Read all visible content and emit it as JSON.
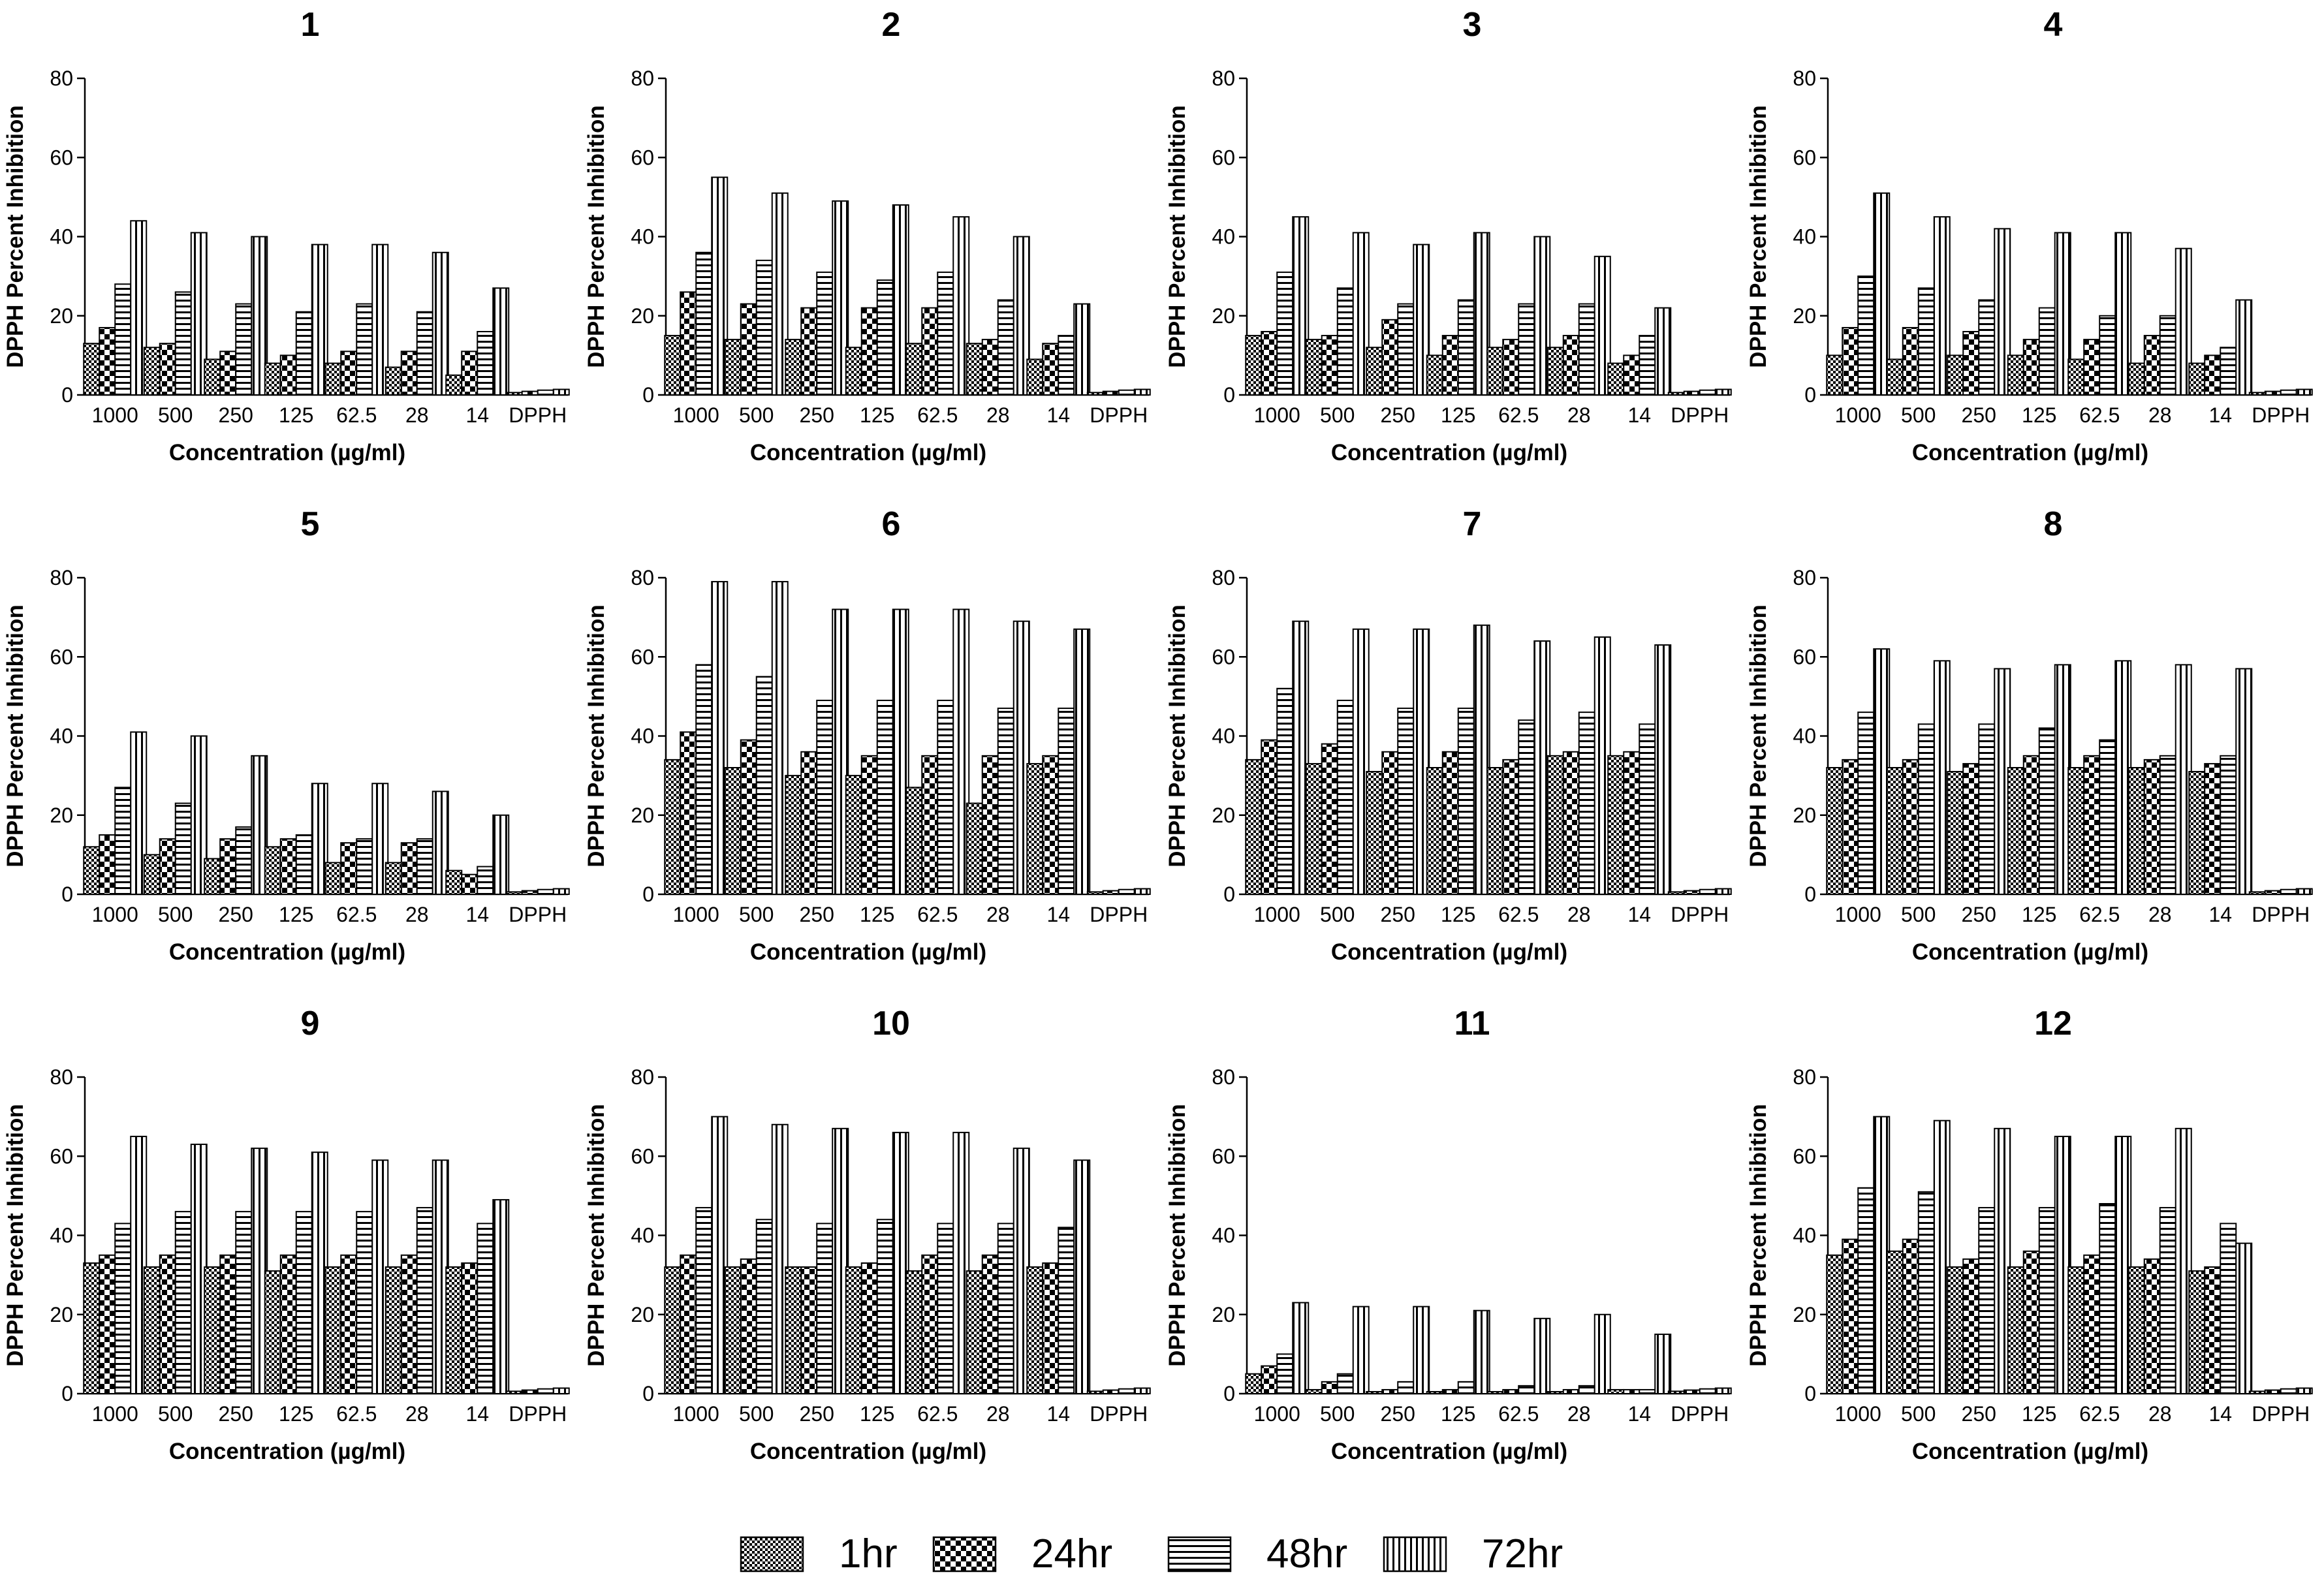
{
  "chart_data": [
    {
      "type": "bar",
      "title": "1",
      "xlabel": "Concentration (µg/ml)",
      "ylabel": "DPPH Percent Inhibition",
      "ylim": [
        0,
        80
      ],
      "yticks": [
        0,
        20,
        40,
        60,
        80
      ],
      "categories": [
        "1000",
        "500",
        "250",
        "125",
        "62.5",
        "28",
        "14",
        "DPPH"
      ],
      "series": [
        {
          "name": "1hr",
          "values": [
            13,
            12,
            9,
            8,
            8,
            7,
            5,
            0.6
          ]
        },
        {
          "name": "24hr",
          "values": [
            17,
            13,
            11,
            10,
            11,
            11,
            11,
            0.9
          ]
        },
        {
          "name": "48hr",
          "values": [
            28,
            26,
            23,
            21,
            23,
            21,
            16,
            1.2
          ]
        },
        {
          "name": "72hr",
          "values": [
            44,
            41,
            40,
            38,
            38,
            36,
            27,
            1.4
          ]
        }
      ]
    },
    {
      "type": "bar",
      "title": "2",
      "xlabel": "Concentration (µg/ml)",
      "ylabel": "DPPH Percent Inhibition",
      "ylim": [
        0,
        80
      ],
      "yticks": [
        0,
        20,
        40,
        60,
        80
      ],
      "categories": [
        "1000",
        "500",
        "250",
        "125",
        "62.5",
        "28",
        "14",
        "DPPH"
      ],
      "series": [
        {
          "name": "1hr",
          "values": [
            15,
            14,
            14,
            12,
            13,
            13,
            9,
            0.6
          ]
        },
        {
          "name": "24hr",
          "values": [
            26,
            23,
            22,
            22,
            22,
            14,
            13,
            0.9
          ]
        },
        {
          "name": "48hr",
          "values": [
            36,
            34,
            31,
            29,
            31,
            24,
            15,
            1.2
          ]
        },
        {
          "name": "72hr",
          "values": [
            55,
            51,
            49,
            48,
            45,
            40,
            23,
            1.4
          ]
        }
      ]
    },
    {
      "type": "bar",
      "title": "3",
      "xlabel": "Concentration (µg/ml)",
      "ylabel": "DPPH Percent Inhibition",
      "ylim": [
        0,
        80
      ],
      "yticks": [
        0,
        20,
        40,
        60,
        80
      ],
      "categories": [
        "1000",
        "500",
        "250",
        "125",
        "62.5",
        "28",
        "14",
        "DPPH"
      ],
      "series": [
        {
          "name": "1hr",
          "values": [
            15,
            14,
            12,
            10,
            12,
            12,
            8,
            0.6
          ]
        },
        {
          "name": "24hr",
          "values": [
            16,
            15,
            19,
            15,
            14,
            15,
            10,
            0.9
          ]
        },
        {
          "name": "48hr",
          "values": [
            31,
            27,
            23,
            24,
            23,
            23,
            15,
            1.2
          ]
        },
        {
          "name": "72hr",
          "values": [
            45,
            41,
            38,
            41,
            40,
            35,
            22,
            1.4
          ]
        }
      ]
    },
    {
      "type": "bar",
      "title": "4",
      "xlabel": "Concentration (µg/ml)",
      "ylabel": "DPPH Percent Inhibition",
      "ylim": [
        0,
        80
      ],
      "yticks": [
        0,
        20,
        40,
        60,
        80
      ],
      "categories": [
        "1000",
        "500",
        "250",
        "125",
        "62.5",
        "28",
        "14",
        "DPPH"
      ],
      "series": [
        {
          "name": "1hr",
          "values": [
            10,
            9,
            10,
            10,
            9,
            8,
            8,
            0.6
          ]
        },
        {
          "name": "24hr",
          "values": [
            17,
            17,
            16,
            14,
            14,
            15,
            10,
            0.9
          ]
        },
        {
          "name": "48hr",
          "values": [
            30,
            27,
            24,
            22,
            20,
            20,
            12,
            1.2
          ]
        },
        {
          "name": "72hr",
          "values": [
            51,
            45,
            42,
            41,
            41,
            37,
            24,
            1.4
          ]
        }
      ]
    },
    {
      "type": "bar",
      "title": "5",
      "xlabel": "Concentration (µg/ml)",
      "ylabel": "DPPH Percent Inhibition",
      "ylim": [
        0,
        80
      ],
      "yticks": [
        0,
        20,
        40,
        60,
        80
      ],
      "categories": [
        "1000",
        "500",
        "250",
        "125",
        "62.5",
        "28",
        "14",
        "DPPH"
      ],
      "series": [
        {
          "name": "1hr",
          "values": [
            12,
            10,
            9,
            12,
            8,
            8,
            6,
            0.6
          ]
        },
        {
          "name": "24hr",
          "values": [
            15,
            14,
            14,
            14,
            13,
            13,
            5,
            0.9
          ]
        },
        {
          "name": "48hr",
          "values": [
            27,
            23,
            17,
            15,
            14,
            14,
            7,
            1.2
          ]
        },
        {
          "name": "72hr",
          "values": [
            41,
            40,
            35,
            28,
            28,
            26,
            20,
            1.4
          ]
        }
      ]
    },
    {
      "type": "bar",
      "title": "6",
      "xlabel": "Concentration (µg/ml)",
      "ylabel": "DPPH Percent Inhibition",
      "ylim": [
        0,
        80
      ],
      "yticks": [
        0,
        20,
        40,
        60,
        80
      ],
      "categories": [
        "1000",
        "500",
        "250",
        "125",
        "62.5",
        "28",
        "14",
        "DPPH"
      ],
      "series": [
        {
          "name": "1hr",
          "values": [
            34,
            32,
            30,
            30,
            27,
            23,
            33,
            0.6
          ]
        },
        {
          "name": "24hr",
          "values": [
            41,
            39,
            36,
            35,
            35,
            35,
            35,
            0.9
          ]
        },
        {
          "name": "48hr",
          "values": [
            58,
            55,
            49,
            49,
            49,
            47,
            47,
            1.2
          ]
        },
        {
          "name": "72hr",
          "values": [
            79,
            79,
            72,
            72,
            72,
            69,
            67,
            1.4
          ]
        }
      ]
    },
    {
      "type": "bar",
      "title": "7",
      "xlabel": "Concentration (µg/ml)",
      "ylabel": "DPPH Percent Inhibition",
      "ylim": [
        0,
        80
      ],
      "yticks": [
        0,
        20,
        40,
        60,
        80
      ],
      "categories": [
        "1000",
        "500",
        "250",
        "125",
        "62.5",
        "28",
        "14",
        "DPPH"
      ],
      "series": [
        {
          "name": "1hr",
          "values": [
            34,
            33,
            31,
            32,
            32,
            35,
            35,
            0.6
          ]
        },
        {
          "name": "24hr",
          "values": [
            39,
            38,
            36,
            36,
            34,
            36,
            36,
            0.9
          ]
        },
        {
          "name": "48hr",
          "values": [
            52,
            49,
            47,
            47,
            44,
            46,
            43,
            1.2
          ]
        },
        {
          "name": "72hr",
          "values": [
            69,
            67,
            67,
            68,
            64,
            65,
            63,
            1.4
          ]
        }
      ]
    },
    {
      "type": "bar",
      "title": "8",
      "xlabel": "Concentration (µg/ml)",
      "ylabel": "DPPH Percent Inhibition",
      "ylim": [
        0,
        80
      ],
      "yticks": [
        0,
        20,
        40,
        60,
        80
      ],
      "categories": [
        "1000",
        "500",
        "250",
        "125",
        "62.5",
        "28",
        "14",
        "DPPH"
      ],
      "series": [
        {
          "name": "1hr",
          "values": [
            32,
            32,
            31,
            32,
            32,
            32,
            31,
            0.6
          ]
        },
        {
          "name": "24hr",
          "values": [
            34,
            34,
            33,
            35,
            35,
            34,
            33,
            0.9
          ]
        },
        {
          "name": "48hr",
          "values": [
            46,
            43,
            43,
            42,
            39,
            35,
            35,
            1.2
          ]
        },
        {
          "name": "72hr",
          "values": [
            62,
            59,
            57,
            58,
            59,
            58,
            57,
            1.4
          ]
        }
      ]
    },
    {
      "type": "bar",
      "title": "9",
      "xlabel": "Concentration (µg/ml)",
      "ylabel": "DPPH Percent Inhibition",
      "ylim": [
        0,
        80
      ],
      "yticks": [
        0,
        20,
        40,
        60,
        80
      ],
      "categories": [
        "1000",
        "500",
        "250",
        "125",
        "62.5",
        "28",
        "14",
        "DPPH"
      ],
      "series": [
        {
          "name": "1hr",
          "values": [
            33,
            32,
            32,
            31,
            32,
            32,
            32,
            0.6
          ]
        },
        {
          "name": "24hr",
          "values": [
            35,
            35,
            35,
            35,
            35,
            35,
            33,
            0.9
          ]
        },
        {
          "name": "48hr",
          "values": [
            43,
            46,
            46,
            46,
            46,
            47,
            43,
            1.2
          ]
        },
        {
          "name": "72hr",
          "values": [
            65,
            63,
            62,
            61,
            59,
            59,
            49,
            1.4
          ]
        }
      ]
    },
    {
      "type": "bar",
      "title": "10",
      "xlabel": "Concentration (µg/ml)",
      "ylabel": "DPPH Percent Inhibition",
      "ylim": [
        0,
        80
      ],
      "yticks": [
        0,
        20,
        40,
        60,
        80
      ],
      "categories": [
        "1000",
        "500",
        "250",
        "125",
        "62.5",
        "28",
        "14",
        "DPPH"
      ],
      "series": [
        {
          "name": "1hr",
          "values": [
            32,
            32,
            32,
            32,
            31,
            31,
            32,
            0.6
          ]
        },
        {
          "name": "24hr",
          "values": [
            35,
            34,
            32,
            33,
            35,
            35,
            33,
            0.9
          ]
        },
        {
          "name": "48hr",
          "values": [
            47,
            44,
            43,
            44,
            43,
            43,
            42,
            1.2
          ]
        },
        {
          "name": "72hr",
          "values": [
            70,
            68,
            67,
            66,
            66,
            62,
            59,
            1.4
          ]
        }
      ]
    },
    {
      "type": "bar",
      "title": "11",
      "xlabel": "Concentration (µg/ml)",
      "ylabel": "DPPH Percent Inhibition",
      "ylim": [
        0,
        80
      ],
      "yticks": [
        0,
        20,
        40,
        60,
        80
      ],
      "categories": [
        "1000",
        "500",
        "250",
        "125",
        "62.5",
        "28",
        "14",
        "DPPH"
      ],
      "series": [
        {
          "name": "1hr",
          "values": [
            5,
            1,
            0.5,
            0.5,
            0.5,
            0.5,
            1,
            0.6
          ]
        },
        {
          "name": "24hr",
          "values": [
            7,
            3,
            1,
            1,
            1,
            1,
            1,
            0.9
          ]
        },
        {
          "name": "48hr",
          "values": [
            10,
            5,
            3,
            3,
            2,
            2,
            1,
            1.2
          ]
        },
        {
          "name": "72hr",
          "values": [
            23,
            22,
            22,
            21,
            19,
            20,
            15,
            1.4
          ]
        }
      ]
    },
    {
      "type": "bar",
      "title": "12",
      "xlabel": "Concentration (µg/ml)",
      "ylabel": "DPPH Percent Inhibition",
      "ylim": [
        0,
        80
      ],
      "yticks": [
        0,
        20,
        40,
        60,
        80
      ],
      "categories": [
        "1000",
        "500",
        "250",
        "125",
        "62.5",
        "28",
        "14",
        "DPPH"
      ],
      "series": [
        {
          "name": "1hr",
          "values": [
            35,
            36,
            32,
            32,
            32,
            32,
            31,
            0.6
          ]
        },
        {
          "name": "24hr",
          "values": [
            39,
            39,
            34,
            36,
            35,
            34,
            32,
            0.9
          ]
        },
        {
          "name": "48hr",
          "values": [
            52,
            51,
            47,
            47,
            48,
            47,
            43,
            1.2
          ]
        },
        {
          "name": "72hr",
          "values": [
            70,
            69,
            67,
            65,
            65,
            67,
            38,
            1.4
          ]
        }
      ]
    }
  ],
  "legend": {
    "items": [
      {
        "label": "1hr",
        "pattern": "fine-check"
      },
      {
        "label": "24hr",
        "pattern": "coarse-check"
      },
      {
        "label": "48hr",
        "pattern": "horizontal-lines"
      },
      {
        "label": "72hr",
        "pattern": "vertical-lines"
      }
    ]
  },
  "colors": {
    "ink": "#000000",
    "background": "#ffffff"
  }
}
